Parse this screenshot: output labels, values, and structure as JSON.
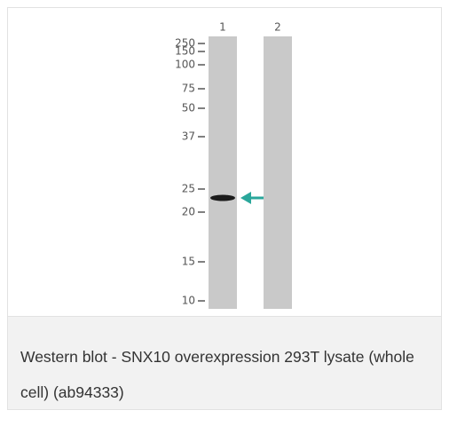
{
  "blot": {
    "lanes": [
      "1",
      "2"
    ],
    "markers": [
      "250",
      "150",
      "100",
      "75",
      "50",
      "37",
      "25",
      "20",
      "15",
      "10"
    ]
  },
  "caption": "Western blot - SNX10 overexpression 293T lysate (whole cell) (ab94333)"
}
